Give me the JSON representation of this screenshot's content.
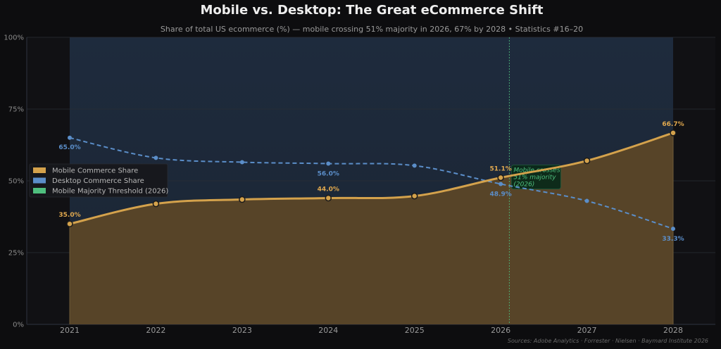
{
  "chart_data": {
    "type": "area",
    "title": "Mobile vs. Desktop: The Great eCommerce Shift",
    "subtitle": "Share of total US ecommerce (%) — mobile crossing 51% majority in 2026, 67% by 2028  •  Statistics #16–20",
    "x": [
      2021,
      2022,
      2023,
      2024,
      2025,
      2026,
      2027,
      2028
    ],
    "xticks": [
      "2021",
      "2022",
      "2023",
      "2024",
      "2025",
      "2026",
      "2027",
      "2028"
    ],
    "ylim": [
      0,
      100
    ],
    "yticks": [
      "0%",
      "25%",
      "50%",
      "75%",
      "100%"
    ],
    "grid": true,
    "legend_placement": "center-left",
    "series": [
      {
        "name": "Mobile Commerce Share",
        "values": [
          35.0,
          42.0,
          43.5,
          44.0,
          44.7,
          51.1,
          57.0,
          66.7
        ],
        "labeled": [
          {
            "index": 0,
            "text": "35.0%"
          },
          {
            "index": 3,
            "text": "44.0%"
          },
          {
            "index": 5,
            "text": "51.1%"
          },
          {
            "index": 7,
            "text": "66.7%"
          }
        ],
        "color": "#d4a24c"
      },
      {
        "name": "Desktop Commerce Share",
        "values": [
          65.0,
          58.0,
          56.5,
          56.0,
          55.3,
          48.9,
          43.0,
          33.3
        ],
        "labeled": [
          {
            "index": 0,
            "text": "65.0%"
          },
          {
            "index": 3,
            "text": "56.0%"
          },
          {
            "index": 5,
            "text": "48.9%"
          },
          {
            "index": 7,
            "text": "33.3%"
          }
        ],
        "color": "#5b8ec9"
      }
    ],
    "threshold": {
      "name": "Mobile Majority Threshold (2026)",
      "x": 2026.1,
      "color": "#4fbf7e",
      "annotation": [
        "Mobile crosses",
        "51% majority",
        "(2026)"
      ]
    },
    "source": "Sources: Adobe Analytics · Forrester · Nielsen · Baymard Institute 2026"
  }
}
